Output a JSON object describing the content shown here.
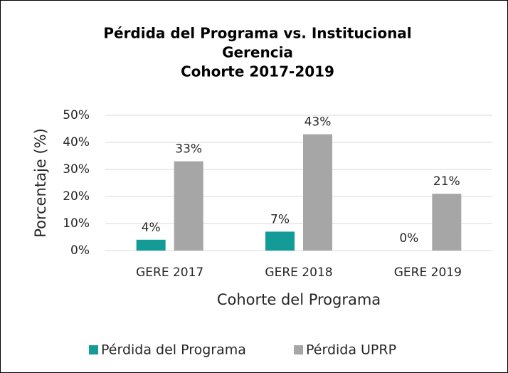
{
  "chart_data": {
    "type": "bar",
    "title": [
      "Pérdida del Programa vs. Institucional",
      "Gerencia",
      "Cohorte 2017-2019"
    ],
    "y_label": "Porcentaje (%)",
    "x_label": "Cohorte del Programa",
    "categories": [
      "GERE 2017",
      "GERE 2018",
      "GERE 2019"
    ],
    "series": [
      {
        "name": "Pérdida del Programa",
        "color": "#139c97",
        "values": [
          4,
          7,
          0
        ],
        "value_labels": [
          "4%",
          "7%",
          "0%"
        ]
      },
      {
        "name": "Pérdida UPRP",
        "color": "#a6a6a6",
        "values": [
          33,
          43,
          21
        ],
        "value_labels": [
          "33%",
          "43%",
          "21%"
        ]
      }
    ],
    "ylim": [
      0,
      50
    ],
    "yticks": [
      {
        "value": 0,
        "label": "0%"
      },
      {
        "value": 10,
        "label": "10%"
      },
      {
        "value": 20,
        "label": "20%"
      },
      {
        "value": 30,
        "label": "30%"
      },
      {
        "value": 40,
        "label": "40%"
      },
      {
        "value": 50,
        "label": "50%"
      }
    ],
    "grid": true,
    "legend": "bottom"
  }
}
